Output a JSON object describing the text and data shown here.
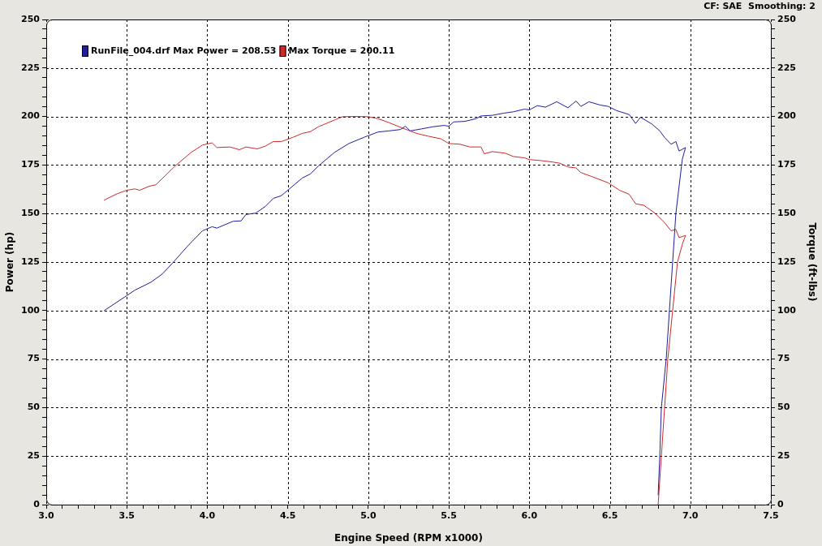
{
  "chart_data": {
    "type": "line",
    "xlabel": "Engine Speed (RPM x1000)",
    "ylabel": "Power (hp)",
    "y2label": "Torque (ft-lbs)",
    "annotations": [
      "CF: SAE  Smoothing: 2"
    ],
    "xlim": [
      3,
      7.5
    ],
    "xticks": [
      {
        "value": 3,
        "label": "3.0"
      },
      {
        "value": 3.1,
        "label": null
      },
      {
        "value": 3.2,
        "label": null
      },
      {
        "value": 3.3,
        "label": null
      },
      {
        "value": 3.4,
        "label": null
      },
      3.5,
      {
        "value": 3.6,
        "label": null
      },
      {
        "value": 3.7,
        "label": null
      },
      {
        "value": 3.8,
        "label": null
      },
      {
        "value": 3.9,
        "label": null
      },
      {
        "value": 4,
        "label": "4.0"
      },
      {
        "value": 4.1,
        "label": null
      },
      {
        "value": 4.2,
        "label": null
      },
      {
        "value": 4.3,
        "label": null
      },
      {
        "value": 4.4,
        "label": null
      },
      4.5,
      {
        "value": 4.6,
        "label": null
      },
      {
        "value": 4.7,
        "label": null
      },
      {
        "value": 4.8,
        "label": null
      },
      {
        "value": 4.9,
        "label": null
      },
      {
        "value": 5,
        "label": "5.0"
      },
      {
        "value": 5.1,
        "label": null
      },
      {
        "value": 5.2,
        "label": null
      },
      {
        "value": 5.3,
        "label": null
      },
      {
        "value": 5.4,
        "label": null
      },
      5.5,
      {
        "value": 5.6,
        "label": null
      },
      {
        "value": 5.7,
        "label": null
      },
      {
        "value": 5.8,
        "label": null
      },
      {
        "value": 5.9,
        "label": null
      },
      {
        "value": 6,
        "label": "6.0"
      },
      {
        "value": 6.1,
        "label": null
      },
      {
        "value": 6.2,
        "label": null
      },
      {
        "value": 6.3,
        "label": null
      },
      {
        "value": 6.4,
        "label": null
      },
      6.5,
      {
        "value": 6.6,
        "label": null
      },
      {
        "value": 6.7,
        "label": null
      },
      {
        "value": 6.8,
        "label": null
      },
      {
        "value": 6.9,
        "label": null
      },
      {
        "value": 7,
        "label": "7.0"
      },
      {
        "value": 7.1,
        "label": null
      },
      {
        "value": 7.2,
        "label": null
      },
      {
        "value": 7.3,
        "label": null
      },
      {
        "value": 7.4,
        "label": null
      },
      7.5
    ],
    "ylim": [
      0,
      250
    ],
    "yticks": [
      0,
      {
        "value": 5,
        "label": null
      },
      {
        "value": 10,
        "label": null
      },
      {
        "value": 15,
        "label": null
      },
      {
        "value": 20,
        "label": null
      },
      25,
      {
        "value": 30,
        "label": null
      },
      {
        "value": 35,
        "label": null
      },
      {
        "value": 40,
        "label": null
      },
      {
        "value": 45,
        "label": null
      },
      50,
      {
        "value": 55,
        "label": null
      },
      {
        "value": 60,
        "label": null
      },
      {
        "value": 65,
        "label": null
      },
      {
        "value": 70,
        "label": null
      },
      75,
      {
        "value": 80,
        "label": null
      },
      {
        "value": 85,
        "label": null
      },
      {
        "value": 90,
        "label": null
      },
      {
        "value": 95,
        "label": null
      },
      100,
      {
        "value": 105,
        "label": null
      },
      {
        "value": 110,
        "label": null
      },
      {
        "value": 115,
        "label": null
      },
      {
        "value": 120,
        "label": null
      },
      125,
      {
        "value": 130,
        "label": null
      },
      {
        "value": 135,
        "label": null
      },
      {
        "value": 140,
        "label": null
      },
      {
        "value": 145,
        "label": null
      },
      150,
      {
        "value": 155,
        "label": null
      },
      {
        "value": 160,
        "label": null
      },
      {
        "value": 165,
        "label": null
      },
      {
        "value": 170,
        "label": null
      },
      175,
      {
        "value": 180,
        "label": null
      },
      {
        "value": 185,
        "label": null
      },
      {
        "value": 190,
        "label": null
      },
      {
        "value": 195,
        "label": null
      },
      200,
      {
        "value": 205,
        "label": null
      },
      {
        "value": 210,
        "label": null
      },
      {
        "value": 215,
        "label": null
      },
      {
        "value": 220,
        "label": null
      },
      225,
      {
        "value": 230,
        "label": null
      },
      {
        "value": 235,
        "label": null
      },
      {
        "value": 240,
        "label": null
      },
      {
        "value": 245,
        "label": null
      },
      250
    ],
    "y2lim": [
      0,
      250
    ],
    "y2ticks": [
      0,
      {
        "value": 5,
        "label": null
      },
      {
        "value": 10,
        "label": null
      },
      {
        "value": 15,
        "label": null
      },
      {
        "value": 20,
        "label": null
      },
      25,
      {
        "value": 30,
        "label": null
      },
      {
        "value": 35,
        "label": null
      },
      {
        "value": 40,
        "label": null
      },
      {
        "value": 45,
        "label": null
      },
      50,
      {
        "value": 55,
        "label": null
      },
      {
        "value": 60,
        "label": null
      },
      {
        "value": 65,
        "label": null
      },
      {
        "value": 70,
        "label": null
      },
      75,
      {
        "value": 80,
        "label": null
      },
      {
        "value": 85,
        "label": null
      },
      {
        "value": 90,
        "label": null
      },
      {
        "value": 95,
        "label": null
      },
      100,
      {
        "value": 105,
        "label": null
      },
      {
        "value": 110,
        "label": null
      },
      {
        "value": 115,
        "label": null
      },
      {
        "value": 120,
        "label": null
      },
      125,
      {
        "value": 130,
        "label": null
      },
      {
        "value": 135,
        "label": null
      },
      {
        "value": 140,
        "label": null
      },
      {
        "value": 145,
        "label": null
      },
      150,
      {
        "value": 155,
        "label": null
      },
      {
        "value": 160,
        "label": null
      },
      {
        "value": 165,
        "label": null
      },
      {
        "value": 170,
        "label": null
      },
      175,
      {
        "value": 180,
        "label": null
      },
      {
        "value": 185,
        "label": null
      },
      {
        "value": 190,
        "label": null
      },
      {
        "value": 195,
        "label": null
      },
      200,
      {
        "value": 205,
        "label": null
      },
      {
        "value": 210,
        "label": null
      },
      {
        "value": 215,
        "label": null
      },
      {
        "value": 220,
        "label": null
      },
      225,
      {
        "value": 230,
        "label": null
      },
      {
        "value": 235,
        "label": null
      },
      {
        "value": 240,
        "label": null
      },
      {
        "value": 245,
        "label": null
      },
      250
    ],
    "grid": true,
    "legend": "top left",
    "series": [
      {
        "name": "RunFile_004.drf Max Power = 208.53",
        "color": "#1e1e9e",
        "x": [
          3.36,
          3.5,
          3.55,
          3.65,
          3.72,
          3.79,
          3.88,
          3.97,
          4.03,
          4.06,
          4.16,
          4.21,
          4.24,
          4.3,
          4.36,
          4.41,
          4.46,
          4.51,
          4.59,
          4.64,
          4.69,
          4.79,
          4.88,
          4.98,
          5.06,
          5.13,
          5.2,
          5.23,
          5.26,
          5.33,
          5.4,
          5.47,
          5.5,
          5.53,
          5.6,
          5.67,
          5.7,
          5.77,
          5.84,
          5.9,
          5.97,
          6.0,
          6.05,
          6.1,
          6.17,
          6.24,
          6.29,
          6.32,
          6.37,
          6.44,
          6.49,
          6.54,
          6.62,
          6.66,
          6.69,
          6.76,
          6.81,
          6.84,
          6.88,
          6.91,
          6.93,
          6.97,
          6.95,
          6.91,
          6.89,
          6.87,
          6.85,
          6.82,
          6.81,
          6.8
        ],
        "values": [
          100,
          107.7,
          110.5,
          114.6,
          118.8,
          125,
          133.4,
          141.1,
          143.2,
          142.5,
          146,
          146.2,
          149.5,
          150.2,
          153.6,
          157.8,
          159.2,
          162.7,
          168.3,
          170.4,
          174.5,
          181.5,
          186.1,
          189.5,
          192,
          192.6,
          193.3,
          195,
          192.6,
          193.6,
          194.7,
          195.4,
          195,
          197.2,
          197.5,
          198.9,
          200.3,
          200.6,
          201.7,
          202.4,
          203.8,
          203.4,
          205.6,
          204.8,
          207.6,
          204.5,
          208,
          205.2,
          207.6,
          205.9,
          205.2,
          203.1,
          201,
          196.4,
          199.6,
          196.2,
          192.6,
          189.2,
          185.7,
          187.1,
          182.2,
          184,
          178,
          150,
          125,
          100,
          75,
          50,
          25,
          5
        ]
      },
      {
        "name": "Max Torque = 200.11",
        "color": "#d02828",
        "axis": "y2",
        "x": [
          3.36,
          3.44,
          3.5,
          3.55,
          3.58,
          3.64,
          3.68,
          3.74,
          3.8,
          3.9,
          3.97,
          4.03,
          4.06,
          4.14,
          4.2,
          4.24,
          4.31,
          4.36,
          4.41,
          4.46,
          4.53,
          4.59,
          4.64,
          4.69,
          4.79,
          4.84,
          4.92,
          5.0,
          5.06,
          5.13,
          5.21,
          5.3,
          5.37,
          5.45,
          5.5,
          5.57,
          5.63,
          5.7,
          5.72,
          5.77,
          5.85,
          5.9,
          5.97,
          6.0,
          6.07,
          6.14,
          6.19,
          6.24,
          6.29,
          6.32,
          6.39,
          6.49,
          6.56,
          6.62,
          6.66,
          6.71,
          6.78,
          6.84,
          6.88,
          6.91,
          6.93,
          6.97,
          6.95,
          6.92,
          6.89,
          6.86,
          6.84,
          6.82,
          6.8
        ],
        "values": [
          156.9,
          160.2,
          162,
          162.7,
          162,
          164.1,
          164.8,
          169.6,
          174.5,
          181.5,
          185.3,
          186.4,
          184,
          184.3,
          182.9,
          184.3,
          183.3,
          184.7,
          187.1,
          187.1,
          189.2,
          191.3,
          192.2,
          194.7,
          198.2,
          199.9,
          200,
          199.9,
          198.9,
          196.8,
          194.1,
          191.3,
          189.9,
          188.5,
          186.1,
          185.7,
          184.3,
          184.3,
          180.8,
          181.9,
          181.1,
          179.4,
          178.7,
          177.8,
          177.3,
          176.6,
          175.9,
          174,
          173.5,
          171.1,
          169,
          165.8,
          162,
          159.9,
          155,
          154.3,
          150.2,
          145.3,
          141.1,
          141.8,
          137.6,
          138.7,
          134.1,
          125,
          100,
          75,
          50,
          25,
          0
        ]
      }
    ]
  }
}
